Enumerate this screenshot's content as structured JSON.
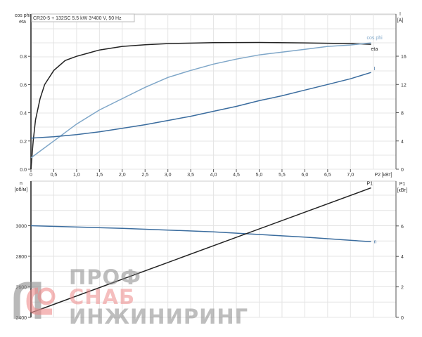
{
  "chart_data": [
    {
      "type": "line",
      "title": "CR20-5 + 132SC   5.5 kW   3*400 V, 50 Hz",
      "xlabel": "P2 [кВт]",
      "ylabel_left": [
        "cos phi",
        "eta"
      ],
      "ylabel_right": [
        "I",
        "[A]"
      ],
      "xlim": [
        0,
        7.9
      ],
      "ylim_left": [
        0,
        1.0
      ],
      "ylim_right": [
        0,
        20
      ],
      "x_ticks": [
        "0",
        "0,5",
        "1,0",
        "1,5",
        "2,0",
        "2,5",
        "3,0",
        "3,5",
        "4,0",
        "4,5",
        "5,0",
        "5,5",
        "6,0",
        "6,5",
        "7,0"
      ],
      "y_ticks_left": [
        "0.0",
        "0.2",
        "0.4",
        "0.6",
        "0.8"
      ],
      "y_ticks_right": [
        "0",
        "4",
        "8",
        "12",
        "16"
      ],
      "grid": true,
      "series": [
        {
          "name": "eta",
          "axis": "left",
          "color": "#222222",
          "points": [
            [
              0,
              0
            ],
            [
              0.05,
              0.2
            ],
            [
              0.1,
              0.35
            ],
            [
              0.2,
              0.5
            ],
            [
              0.3,
              0.6
            ],
            [
              0.5,
              0.7
            ],
            [
              0.75,
              0.77
            ],
            [
              1,
              0.8
            ],
            [
              1.5,
              0.845
            ],
            [
              2,
              0.87
            ],
            [
              2.5,
              0.882
            ],
            [
              3,
              0.89
            ],
            [
              4,
              0.897
            ],
            [
              5,
              0.898
            ],
            [
              6,
              0.895
            ],
            [
              7,
              0.89
            ],
            [
              7.45,
              0.885
            ]
          ]
        },
        {
          "name": "cos phi",
          "axis": "left",
          "color": "#7ea6c8",
          "points": [
            [
              0,
              0.08
            ],
            [
              0.25,
              0.14
            ],
            [
              0.5,
              0.2
            ],
            [
              1,
              0.32
            ],
            [
              1.5,
              0.42
            ],
            [
              2,
              0.5
            ],
            [
              2.5,
              0.58
            ],
            [
              3,
              0.65
            ],
            [
              3.5,
              0.7
            ],
            [
              4,
              0.745
            ],
            [
              4.5,
              0.78
            ],
            [
              5,
              0.81
            ],
            [
              5.5,
              0.83
            ],
            [
              6,
              0.85
            ],
            [
              6.5,
              0.87
            ],
            [
              7,
              0.88
            ],
            [
              7.45,
              0.895
            ]
          ]
        },
        {
          "name": "I",
          "axis": "right",
          "color": "#3a6c9e",
          "points": [
            [
              0,
              4.4
            ],
            [
              0.5,
              4.6
            ],
            [
              1,
              4.9
            ],
            [
              1.5,
              5.3
            ],
            [
              2,
              5.8
            ],
            [
              2.5,
              6.3
            ],
            [
              3,
              6.9
            ],
            [
              3.5,
              7.5
            ],
            [
              4,
              8.2
            ],
            [
              4.5,
              8.9
            ],
            [
              5,
              9.7
            ],
            [
              5.5,
              10.4
            ],
            [
              6,
              11.2
            ],
            [
              6.5,
              12
            ],
            [
              7,
              12.8
            ],
            [
              7.45,
              13.7
            ]
          ]
        }
      ]
    },
    {
      "type": "line",
      "ylabel_left": [
        "n",
        "[об/м]"
      ],
      "ylabel_right": [
        "P1",
        "[кВт]"
      ],
      "xlim": [
        0,
        7.9
      ],
      "ylim_left": [
        2400,
        3250
      ],
      "ylim_right": [
        0,
        8.5
      ],
      "y_ticks_left": [
        "2400",
        "2600",
        "2800",
        "3000"
      ],
      "y_ticks_right": [
        "0",
        "2",
        "4",
        "6"
      ],
      "grid": true,
      "series": [
        {
          "name": "n",
          "axis": "left",
          "color": "#3a6c9e",
          "points": [
            [
              0,
              3000
            ],
            [
              2,
              2983
            ],
            [
              4,
              2960
            ],
            [
              6,
              2925
            ],
            [
              7.45,
              2895
            ]
          ]
        },
        {
          "name": "P1",
          "axis": "right",
          "color": "#222222",
          "points": [
            [
              0,
              0.3
            ],
            [
              7.45,
              8.5
            ]
          ]
        }
      ]
    }
  ],
  "watermark": {
    "line1": "ПРОФ",
    "line2": "СНАБ",
    "line3": "ИНЖИНИРИНГ",
    "colors": {
      "gray": "#8a8a8a",
      "red": "#ee8a8a"
    }
  }
}
